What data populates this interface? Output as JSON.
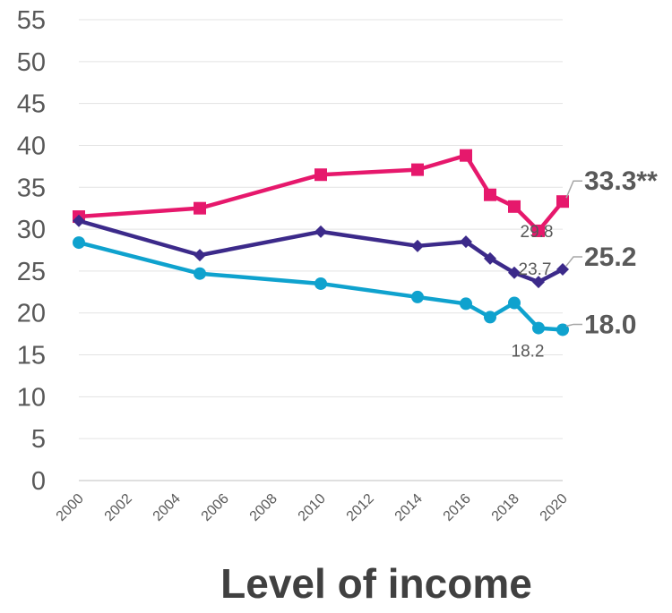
{
  "chart_data": {
    "type": "line",
    "title": "Level of income",
    "xlabel": "",
    "ylabel": "",
    "ylim": [
      0,
      55
    ],
    "y_ticks": [
      "0",
      "5",
      "10",
      "15",
      "20",
      "25",
      "30",
      "35",
      "40",
      "45",
      "50",
      "55"
    ],
    "x_ticks": [
      "2000",
      "2002",
      "2004",
      "2006",
      "2008",
      "2010",
      "2012",
      "2014",
      "2016",
      "2018",
      "2020"
    ],
    "grid": true,
    "legend": "none",
    "series": [
      {
        "color": "#E6186C",
        "marker": "square",
        "x": [
          2000,
          2005,
          2010,
          2014,
          2016,
          2017,
          2018,
          2019,
          2020
        ],
        "values": [
          31.5,
          32.5,
          36.5,
          37.1,
          38.8,
          34.1,
          32.7,
          29.8,
          33.3
        ]
      },
      {
        "color": "#3C2A8A",
        "marker": "diamond",
        "x": [
          2000,
          2005,
          2010,
          2014,
          2016,
          2017,
          2018,
          2019,
          2020
        ],
        "values": [
          31.0,
          26.9,
          29.7,
          28.0,
          28.5,
          26.5,
          24.8,
          23.7,
          25.2
        ]
      },
      {
        "color": "#0FA2CE",
        "marker": "circle",
        "x": [
          2000,
          2005,
          2010,
          2014,
          2016,
          2017,
          2018,
          2019,
          2020
        ],
        "values": [
          28.4,
          24.7,
          23.5,
          21.9,
          21.1,
          19.5,
          21.2,
          18.2,
          18.0
        ]
      }
    ],
    "data_labels": [
      {
        "series": 0,
        "x": 2019,
        "text": "29.8"
      },
      {
        "series": 1,
        "x": 2019,
        "text": "23.7"
      },
      {
        "series": 2,
        "x": 2019,
        "text": "18.2"
      }
    ],
    "end_labels": [
      {
        "series": 0,
        "text": "33.3**"
      },
      {
        "series": 1,
        "text": "25.2"
      },
      {
        "series": 2,
        "text": "18.0"
      }
    ]
  }
}
